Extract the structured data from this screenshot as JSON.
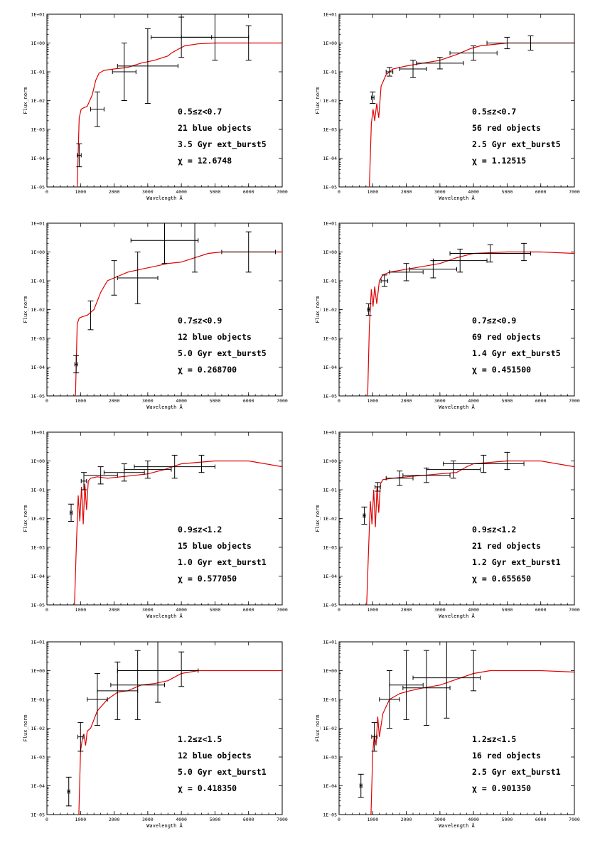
{
  "figure": {
    "x_axis_label": "Wavelength Å",
    "y_axis_label": "Flux_norm"
  },
  "chart_data": [
    {
      "type": "line",
      "panel": "row1-left",
      "xlim": [
        0,
        7000
      ],
      "ylim_log10": [
        -5,
        1
      ],
      "x_ticks": [
        0,
        1000,
        2000,
        3000,
        4000,
        5000,
        6000,
        7000
      ],
      "y_ticks": [
        "1E-05",
        "1E-04",
        "1E-03",
        "1E-02",
        "1E-01",
        "1E+00",
        "1E+01"
      ],
      "xlabel": "Wavelength Å",
      "ylabel": "Flux_norm",
      "annotation": [
        "0.5≤z<0.7",
        "21 blue objects",
        "3.5 Gyr ext_burst5",
        "χ = 12.6748"
      ],
      "model": {
        "color": "#e00000",
        "x": [
          900,
          960,
          1020,
          1100,
          1200,
          1350,
          1450,
          1550,
          1700,
          2000,
          2400,
          2800,
          3200,
          3600,
          3700,
          3900,
          4100,
          4500,
          5000,
          6000,
          7000
        ],
        "log10_y": [
          -5.0,
          -2.6,
          -2.3,
          -2.25,
          -2.2,
          -1.8,
          -1.3,
          -1.05,
          -0.95,
          -0.9,
          -0.85,
          -0.7,
          -0.6,
          -0.45,
          -0.35,
          -0.22,
          -0.1,
          -0.03,
          0.0,
          0.0,
          0.0
        ]
      },
      "points": [
        {
          "x": 960,
          "log10_y": -3.9,
          "xerr": 60,
          "yerr": 0.4
        },
        {
          "x": 1500,
          "log10_y": -2.3,
          "xerr": 200,
          "yerr": 0.6
        },
        {
          "x": 2300,
          "log10_y": -1.0,
          "xerr": 350,
          "yerr": 1.0
        },
        {
          "x": 3000,
          "log10_y": -0.8,
          "xerr": 900,
          "yerr": 1.3
        },
        {
          "x": 4000,
          "log10_y": 0.2,
          "xerr": 900,
          "yerr": 0.7
        },
        {
          "x": 5000,
          "log10_y": 0.2,
          "xerr": 1000,
          "yerr": 0.8
        },
        {
          "x": 6000,
          "log10_y": 0.0,
          "xerr": 0,
          "yerr": 0.6
        }
      ]
    },
    {
      "type": "line",
      "panel": "row1-right",
      "xlim": [
        0,
        7000
      ],
      "ylim_log10": [
        -5,
        1
      ],
      "x_ticks": [
        0,
        1000,
        2000,
        3000,
        4000,
        5000,
        6000,
        7000
      ],
      "y_ticks": [
        "1E-05",
        "1E-04",
        "1E-03",
        "1E-02",
        "1E-01",
        "1E+00",
        "1E+01"
      ],
      "xlabel": "Wavelength Å",
      "ylabel": "Flux_norm",
      "annotation": [
        "0.5≤z<0.7",
        "56 red objects",
        "2.5 Gyr ext_burst5",
        "χ = 1.12515"
      ],
      "model": {
        "color": "#e00000",
        "x": [
          900,
          960,
          1010,
          1060,
          1120,
          1180,
          1250,
          1400,
          1600,
          2000,
          2500,
          3000,
          3500,
          3900,
          4200,
          5000,
          6000,
          7000
        ],
        "log10_y": [
          -5.0,
          -2.8,
          -2.3,
          -2.7,
          -2.1,
          -2.6,
          -1.5,
          -1.1,
          -0.9,
          -0.8,
          -0.7,
          -0.6,
          -0.4,
          -0.2,
          -0.1,
          0.0,
          0.0,
          0.0
        ]
      },
      "points": [
        {
          "x": 1000,
          "log10_y": -1.9,
          "xerr": 40,
          "yerr": 0.2
        },
        {
          "x": 1500,
          "log10_y": -1.0,
          "xerr": 100,
          "yerr": 0.15
        },
        {
          "x": 2200,
          "log10_y": -0.9,
          "xerr": 400,
          "yerr": 0.3
        },
        {
          "x": 3000,
          "log10_y": -0.7,
          "xerr": 700,
          "yerr": 0.2
        },
        {
          "x": 4000,
          "log10_y": -0.35,
          "xerr": 700,
          "yerr": 0.25
        },
        {
          "x": 5000,
          "log10_y": 0.0,
          "xerr": 0,
          "yerr": 0.2
        },
        {
          "x": 5700,
          "log10_y": 0.0,
          "xerr": 1300,
          "yerr": 0.25
        }
      ]
    },
    {
      "type": "line",
      "panel": "row2-left",
      "xlim": [
        0,
        7000
      ],
      "ylim_log10": [
        -5,
        1
      ],
      "x_ticks": [
        0,
        1000,
        2000,
        3000,
        4000,
        5000,
        6000,
        7000
      ],
      "y_ticks": [
        "1E-05",
        "1E-04",
        "1E-03",
        "1E-02",
        "1E-01",
        "1E+00",
        "1E+01"
      ],
      "xlabel": "Wavelength Å",
      "ylabel": "Flux_norm",
      "annotation": [
        "0.7≤z<0.9",
        "12 blue objects",
        "5.0 Gyr ext_burst5",
        "χ = 0.268700"
      ],
      "model": {
        "color": "#e00000",
        "x": [
          850,
          900,
          960,
          1050,
          1200,
          1400,
          1600,
          1800,
          2000,
          2400,
          2800,
          3200,
          3600,
          4000,
          4400,
          4800,
          5200,
          6000,
          7000
        ],
        "log10_y": [
          -5.0,
          -2.5,
          -2.3,
          -2.25,
          -2.2,
          -2.0,
          -1.4,
          -1.0,
          -0.9,
          -0.7,
          -0.6,
          -0.5,
          -0.4,
          -0.35,
          -0.2,
          -0.05,
          0.0,
          0.0,
          0.0
        ]
      },
      "points": [
        {
          "x": 870,
          "log10_y": -3.9,
          "xerr": 40,
          "yerr": 0.3
        },
        {
          "x": 1300,
          "log10_y": -2.2,
          "xerr": 0,
          "yerr": 0.5
        },
        {
          "x": 2000,
          "log10_y": -0.9,
          "xerr": 0,
          "yerr": 0.6
        },
        {
          "x": 2700,
          "log10_y": -0.9,
          "xerr": 600,
          "yerr": 0.9
        },
        {
          "x": 3500,
          "log10_y": 0.4,
          "xerr": 1000,
          "yerr": 0.8
        },
        {
          "x": 4400,
          "log10_y": 0.3,
          "xerr": 0,
          "yerr": 1.0
        },
        {
          "x": 6000,
          "log10_y": 0.0,
          "xerr": 800,
          "yerr": 0.7
        }
      ]
    },
    {
      "type": "line",
      "panel": "row2-right",
      "xlim": [
        0,
        7000
      ],
      "ylim_log10": [
        -5,
        1
      ],
      "x_ticks": [
        0,
        1000,
        2000,
        3000,
        4000,
        5000,
        6000,
        7000
      ],
      "y_ticks": [
        "1E-05",
        "1E-04",
        "1E-03",
        "1E-02",
        "1E-01",
        "1E+00",
        "1E+01"
      ],
      "xlabel": "Wavelength Å",
      "ylabel": "Flux_norm",
      "annotation": [
        "0.7≤z<0.9",
        "69 red objects",
        "1.4 Gyr ext_burst5",
        "χ = 0.451500"
      ],
      "model": {
        "color": "#e00000",
        "x": [
          850,
          900,
          960,
          1010,
          1060,
          1120,
          1200,
          1300,
          1500,
          2000,
          2500,
          3000,
          3500,
          4000,
          5000,
          6000,
          7000
        ],
        "log10_y": [
          -5.0,
          -2.6,
          -1.3,
          -1.9,
          -1.2,
          -1.8,
          -1.0,
          -0.8,
          -0.7,
          -0.6,
          -0.5,
          -0.4,
          -0.2,
          -0.05,
          0.0,
          0.0,
          -0.05
        ]
      },
      "points": [
        {
          "x": 880,
          "log10_y": -2.0,
          "xerr": 30,
          "yerr": 0.2
        },
        {
          "x": 1350,
          "log10_y": -1.0,
          "xerr": 100,
          "yerr": 0.2
        },
        {
          "x": 2000,
          "log10_y": -0.7,
          "xerr": 500,
          "yerr": 0.3
        },
        {
          "x": 2800,
          "log10_y": -0.6,
          "xerr": 700,
          "yerr": 0.3
        },
        {
          "x": 3600,
          "log10_y": -0.3,
          "xerr": 800,
          "yerr": 0.4
        },
        {
          "x": 4500,
          "log10_y": -0.05,
          "xerr": 1200,
          "yerr": 0.3
        },
        {
          "x": 5500,
          "log10_y": 0.0,
          "xerr": 0,
          "yerr": 0.3
        }
      ]
    },
    {
      "type": "line",
      "panel": "row3-left",
      "xlim": [
        0,
        7000
      ],
      "ylim_log10": [
        -5,
        1
      ],
      "x_ticks": [
        0,
        1000,
        2000,
        3000,
        4000,
        5000,
        6000,
        7000
      ],
      "y_ticks": [
        "1E-05",
        "1E-04",
        "1E-03",
        "1E-02",
        "1E-01",
        "1E+00",
        "1E+01"
      ],
      "xlabel": "Wavelength Å",
      "ylabel": "Flux_norm",
      "annotation": [
        "0.9≤z<1.2",
        "15 blue objects",
        "1.0 Gyr ext_burst1",
        "χ = 0.577050"
      ],
      "model": {
        "color": "#e00000",
        "x": [
          820,
          880,
          930,
          980,
          1030,
          1080,
          1130,
          1180,
          1230,
          1300,
          1500,
          1800,
          2200,
          2600,
          3000,
          3500,
          4000,
          5000,
          6000,
          7000
        ],
        "log10_y": [
          -5.0,
          -2.8,
          -1.2,
          -2.1,
          -0.9,
          -2.2,
          -0.8,
          -1.7,
          -0.7,
          -0.6,
          -0.55,
          -0.6,
          -0.55,
          -0.5,
          -0.45,
          -0.3,
          -0.1,
          0.0,
          0.0,
          -0.2
        ]
      },
      "points": [
        {
          "x": 720,
          "log10_y": -1.8,
          "xerr": 30,
          "yerr": 0.3
        },
        {
          "x": 1100,
          "log10_y": -0.7,
          "xerr": 80,
          "yerr": 0.3
        },
        {
          "x": 1600,
          "log10_y": -0.5,
          "xerr": 500,
          "yerr": 0.3
        },
        {
          "x": 2300,
          "log10_y": -0.4,
          "xerr": 600,
          "yerr": 0.3
        },
        {
          "x": 3000,
          "log10_y": -0.3,
          "xerr": 700,
          "yerr": 0.3
        },
        {
          "x": 3800,
          "log10_y": -0.2,
          "xerr": 1200,
          "yerr": 0.4
        },
        {
          "x": 4600,
          "log10_y": -0.1,
          "xerr": 0,
          "yerr": 0.3
        }
      ]
    },
    {
      "type": "line",
      "panel": "row3-right",
      "xlim": [
        0,
        7000
      ],
      "ylim_log10": [
        -5,
        1
      ],
      "x_ticks": [
        0,
        1000,
        2000,
        3000,
        4000,
        5000,
        6000,
        7000
      ],
      "y_ticks": [
        "1E-05",
        "1E-04",
        "1E-03",
        "1E-02",
        "1E-01",
        "1E+00",
        "1E+01"
      ],
      "xlabel": "Wavelength Å",
      "ylabel": "Flux_norm",
      "annotation": [
        "0.9≤z<1.2",
        "21 red objects",
        "1.2 Gyr ext_burst1",
        "χ = 0.655650"
      ],
      "model": {
        "color": "#e00000",
        "x": [
          820,
          880,
          930,
          980,
          1030,
          1080,
          1130,
          1180,
          1230,
          1300,
          1600,
          2000,
          2500,
          3000,
          3500,
          3800,
          4000,
          5000,
          6000,
          7000
        ],
        "log10_y": [
          -5.0,
          -3.0,
          -1.4,
          -2.2,
          -1.0,
          -2.3,
          -0.9,
          -1.8,
          -0.8,
          -0.65,
          -0.6,
          -0.55,
          -0.5,
          -0.45,
          -0.4,
          -0.2,
          -0.1,
          0.0,
          0.0,
          -0.2
        ]
      },
      "points": [
        {
          "x": 750,
          "log10_y": -1.9,
          "xerr": 30,
          "yerr": 0.3
        },
        {
          "x": 1150,
          "log10_y": -0.9,
          "xerr": 80,
          "yerr": 0.15
        },
        {
          "x": 1800,
          "log10_y": -0.6,
          "xerr": 400,
          "yerr": 0.25
        },
        {
          "x": 2600,
          "log10_y": -0.5,
          "xerr": 700,
          "yerr": 0.25
        },
        {
          "x": 3400,
          "log10_y": -0.3,
          "xerr": 800,
          "yerr": 0.3
        },
        {
          "x": 4300,
          "log10_y": -0.1,
          "xerr": 1200,
          "yerr": 0.3
        },
        {
          "x": 5000,
          "log10_y": 0.0,
          "xerr": 0,
          "yerr": 0.3
        }
      ]
    },
    {
      "type": "line",
      "panel": "row4-left",
      "xlim": [
        0,
        7000
      ],
      "ylim_log10": [
        -5,
        1
      ],
      "x_ticks": [
        0,
        1000,
        2000,
        3000,
        4000,
        5000,
        6000,
        7000
      ],
      "y_ticks": [
        "1E-05",
        "1E-04",
        "1E-03",
        "1E-02",
        "1E-01",
        "1E+00",
        "1E+01"
      ],
      "xlabel": "Wavelength Å",
      "ylabel": "Flux_norm",
      "annotation": [
        "1.2≤z<1.5",
        "12 blue objects",
        "5.0 Gyr ext_burst1",
        "χ = 0.418350"
      ],
      "model": {
        "color": "#e00000",
        "x": [
          950,
          1000,
          1050,
          1100,
          1150,
          1200,
          1300,
          1500,
          1800,
          2100,
          2400,
          2800,
          3200,
          3600,
          4000,
          4500,
          5000,
          6000,
          7000
        ],
        "log10_y": [
          -5.0,
          -2.8,
          -2.4,
          -2.2,
          -2.6,
          -2.1,
          -2.0,
          -1.4,
          -1.0,
          -0.75,
          -0.7,
          -0.5,
          -0.45,
          -0.35,
          -0.1,
          0.0,
          0.0,
          0.0,
          0.0
        ]
      },
      "points": [
        {
          "x": 650,
          "log10_y": -4.2,
          "xerr": 30,
          "yerr": 0.5
        },
        {
          "x": 1000,
          "log10_y": -2.3,
          "xerr": 80,
          "yerr": 0.5
        },
        {
          "x": 1500,
          "log10_y": -1.0,
          "xerr": 300,
          "yerr": 0.9
        },
        {
          "x": 2100,
          "log10_y": -0.7,
          "xerr": 600,
          "yerr": 1.0
        },
        {
          "x": 2700,
          "log10_y": -0.5,
          "xerr": 800,
          "yerr": 1.2
        },
        {
          "x": 3300,
          "log10_y": 0.0,
          "xerr": 1200,
          "yerr": 1.1
        },
        {
          "x": 4000,
          "log10_y": 0.05,
          "xerr": 0,
          "yerr": 0.6
        }
      ]
    },
    {
      "type": "line",
      "panel": "row4-right",
      "xlim": [
        0,
        7000
      ],
      "ylim_log10": [
        -5,
        1
      ],
      "x_ticks": [
        0,
        1000,
        2000,
        3000,
        4000,
        5000,
        6000,
        7000
      ],
      "y_ticks": [
        "1E-05",
        "1E-04",
        "1E-03",
        "1E-02",
        "1E-01",
        "1E+00",
        "1E+01"
      ],
      "xlabel": "Wavelength Å",
      "ylabel": "Flux_norm",
      "annotation": [
        "1.2≤z<1.5",
        "16 red objects",
        "2.5 Gyr ext_burst1",
        "χ = 0.901350"
      ],
      "model": {
        "color": "#e00000",
        "x": [
          950,
          1000,
          1050,
          1100,
          1150,
          1200,
          1300,
          1500,
          1800,
          2100,
          2500,
          3000,
          3500,
          4000,
          4500,
          5000,
          6000,
          7000
        ],
        "log10_y": [
          -5.0,
          -2.9,
          -2.2,
          -2.6,
          -1.6,
          -2.3,
          -1.5,
          -1.0,
          -0.8,
          -0.7,
          -0.6,
          -0.5,
          -0.3,
          -0.1,
          0.0,
          0.0,
          0.0,
          -0.05
        ]
      },
      "points": [
        {
          "x": 650,
          "log10_y": -4.0,
          "xerr": 30,
          "yerr": 0.4
        },
        {
          "x": 1050,
          "log10_y": -2.3,
          "xerr": 80,
          "yerr": 0.5
        },
        {
          "x": 1500,
          "log10_y": -1.0,
          "xerr": 300,
          "yerr": 1.0
        },
        {
          "x": 2000,
          "log10_y": -0.5,
          "xerr": 500,
          "yerr": 1.2
        },
        {
          "x": 2600,
          "log10_y": -0.6,
          "xerr": 700,
          "yerr": 1.3
        },
        {
          "x": 3200,
          "log10_y": -0.25,
          "xerr": 1000,
          "yerr": 1.4
        },
        {
          "x": 4000,
          "log10_y": 0.0,
          "xerr": 0,
          "yerr": 0.7
        }
      ]
    }
  ]
}
